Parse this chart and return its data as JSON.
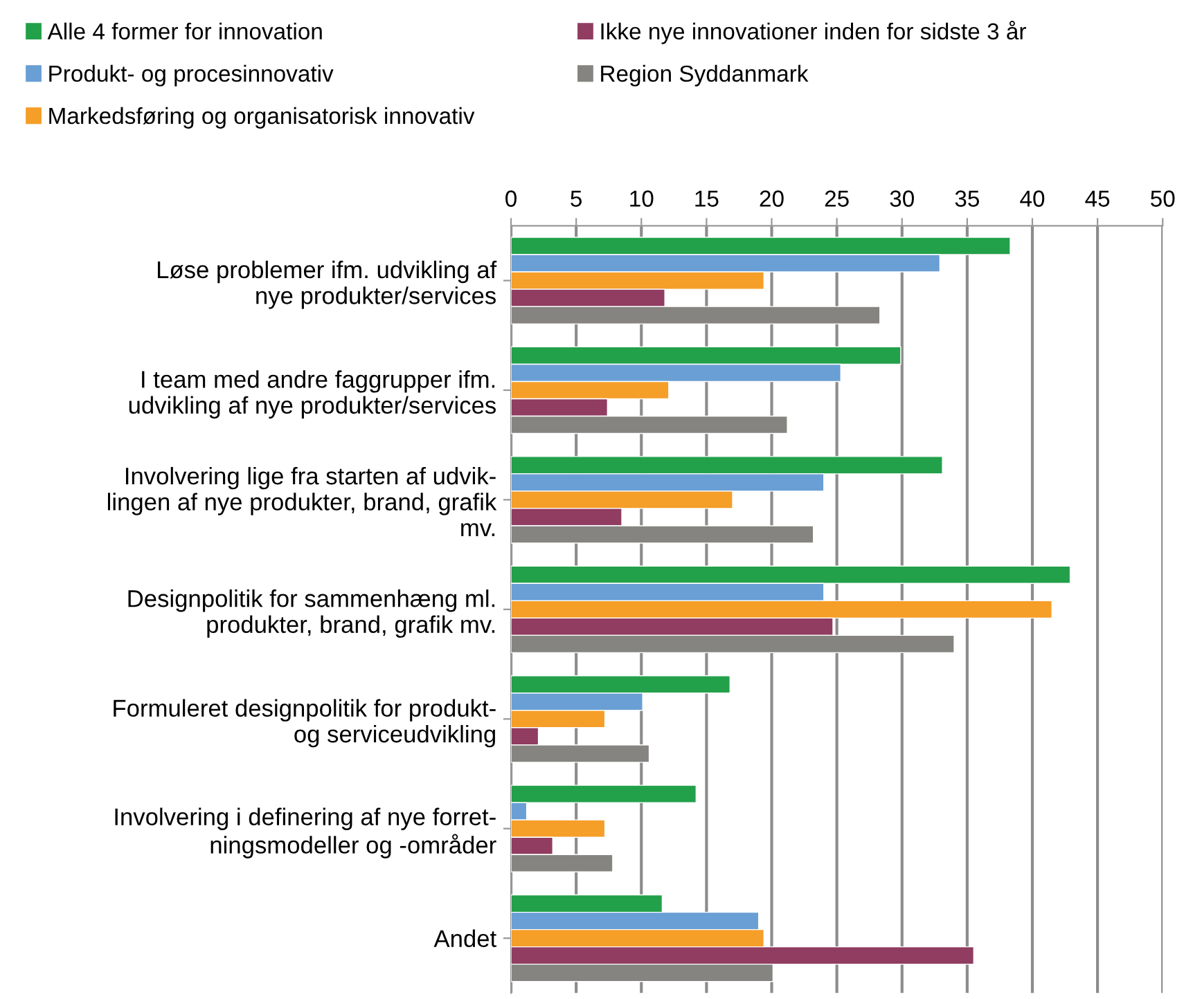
{
  "chart_data": {
    "type": "bar",
    "orientation": "horizontal",
    "categories": [
      "Løse problemer ifm. udvikling af\nnye produkter/services",
      "I team med andre faggrupper ifm.\nudvikling af nye produkter/services",
      "Involvering lige fra starten af udvik-\nlingen af nye produkter, brand, grafik\nmv.",
      "Designpolitik for sammenhæng ml.\nprodukter, brand, grafik mv.",
      "Formuleret designpolitik for produkt-\nog serviceudvikling",
      "Involvering i definering af nye forret-\nningsmodeller og -områder",
      "Andet"
    ],
    "series": [
      {
        "name": "Alle 4 former for innovation",
        "color": "#23a04a",
        "values": [
          38.3,
          29.9,
          33.1,
          42.9,
          16.8,
          14.2,
          11.6
        ]
      },
      {
        "name": "Produkt- og procesinnovativ",
        "color": "#699fd4",
        "values": [
          32.9,
          25.3,
          24.0,
          24.0,
          10.1,
          1.2,
          19.0
        ]
      },
      {
        "name": "Markedsføring og organisatorisk innovativ",
        "color": "#f59e28",
        "values": [
          19.4,
          12.1,
          17.0,
          41.5,
          7.2,
          7.2,
          19.4
        ]
      },
      {
        "name": "Ikke nye innovationer inden for sidste 3 år",
        "color": "#913c61",
        "values": [
          11.8,
          7.4,
          8.5,
          24.7,
          2.1,
          3.2,
          35.5
        ]
      },
      {
        "name": "Region Syddanmark",
        "color": "#858480",
        "values": [
          28.3,
          21.2,
          23.2,
          34.0,
          10.6,
          7.8,
          20.1
        ]
      }
    ],
    "xlim": [
      0,
      50
    ],
    "xticks": [
      0,
      5,
      10,
      15,
      20,
      25,
      30,
      35,
      40,
      45,
      50
    ],
    "grid": "x",
    "legend": "top"
  }
}
